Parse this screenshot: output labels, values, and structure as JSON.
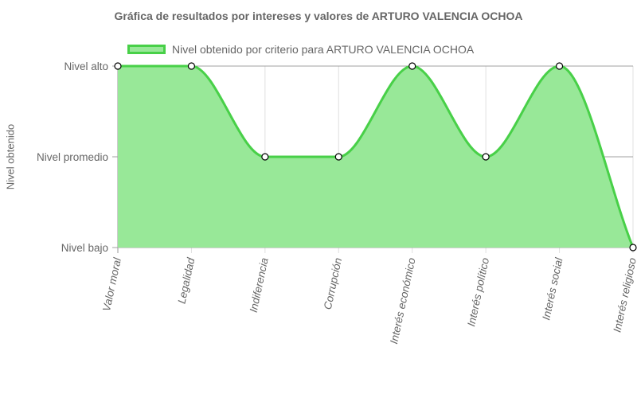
{
  "chart_data": {
    "type": "area",
    "title": "Gráfica de resultados por intereses y valores de ARTURO VALENCIA OCHOA",
    "ylabel": "Nivel obtenido",
    "xlabel": "",
    "categories": [
      "Valor moral",
      "Legalidad",
      "Indiferencia",
      "Corrupción",
      "Interés económico",
      "Interés político",
      "Interés social",
      "Interés religioso"
    ],
    "y_levels": [
      "Nivel bajo",
      "Nivel promedio",
      "Nivel alto"
    ],
    "ylim": [
      0,
      2
    ],
    "series": [
      {
        "name": "Nivel obtenido por criterio para ARTURO VALENCIA OCHOA",
        "values": [
          2,
          2,
          1,
          1,
          2,
          1,
          2,
          0
        ],
        "line_color": "#48d048",
        "fill_color": "#98e898"
      }
    ],
    "grid": true,
    "legend_position": "top"
  }
}
